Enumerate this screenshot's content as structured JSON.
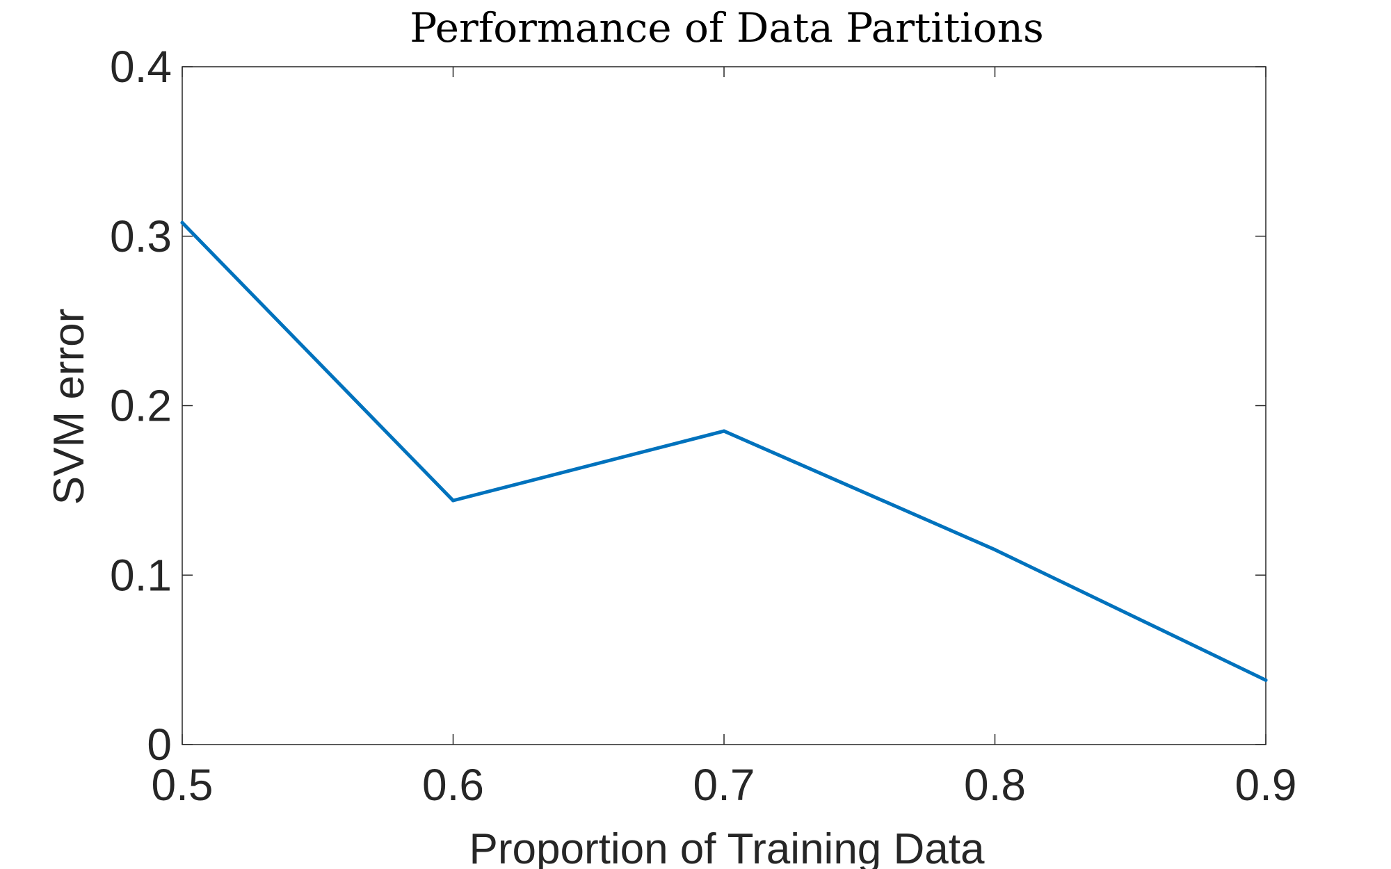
{
  "chart_data": {
    "type": "line",
    "title": "Performance of Data Partitions",
    "xlabel": "Proportion of Training Data",
    "ylabel": "SVM error",
    "xlim": [
      0.5,
      0.9
    ],
    "ylim": [
      0,
      0.4
    ],
    "xticks": [
      "0.5",
      "0.6",
      "0.7",
      "0.8",
      "0.9"
    ],
    "yticks": [
      "0",
      "0.1",
      "0.2",
      "0.3",
      "0.4"
    ],
    "x": [
      0.5,
      0.6,
      0.7,
      0.8,
      0.9
    ],
    "series": [
      {
        "values": [
          0.308,
          0.144,
          0.185,
          0.115,
          0.038
        ],
        "color": "#0072BD"
      }
    ],
    "grid": false,
    "legend": "none"
  }
}
